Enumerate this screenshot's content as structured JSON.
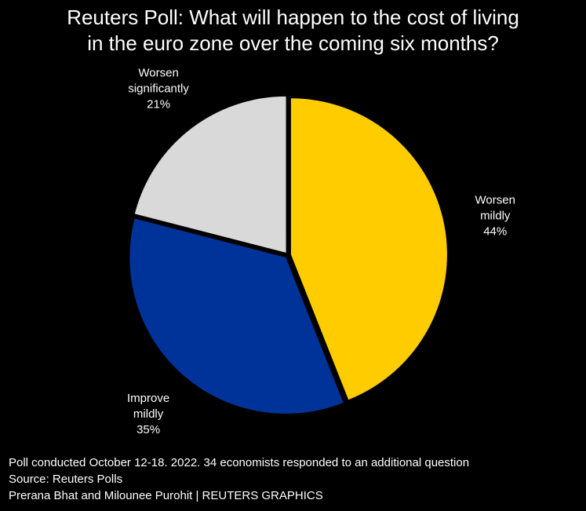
{
  "header": {
    "title_line1": "Reuters Poll: What will happen to the cost of living",
    "title_line2": "in the euro zone over the coming six months?"
  },
  "chart_data": {
    "type": "pie",
    "title": "Reuters Poll: What will happen to the cost of living in the euro zone over the coming six months?",
    "slices": [
      {
        "label_lines": [
          "Worsen",
          "mildly"
        ],
        "value": 44,
        "value_label": "44%",
        "color": "#ffcc00"
      },
      {
        "label_lines": [
          "Improve",
          "mildly"
        ],
        "value": 35,
        "value_label": "35%",
        "color": "#003399"
      },
      {
        "label_lines": [
          "Worsen",
          "significantly"
        ],
        "value": 21,
        "value_label": "21%",
        "color": "#d9d9d9"
      }
    ],
    "start_angle_deg": 0,
    "direction": "clockwise",
    "exploded": true
  },
  "footer": {
    "note": "Poll conducted October 12-18. 2022. 34 economists responded to an additional question",
    "source": "Source: Reuters Polls",
    "credit": "Prerana Bhat and Milounee Purohit | REUTERS GRAPHICS"
  }
}
